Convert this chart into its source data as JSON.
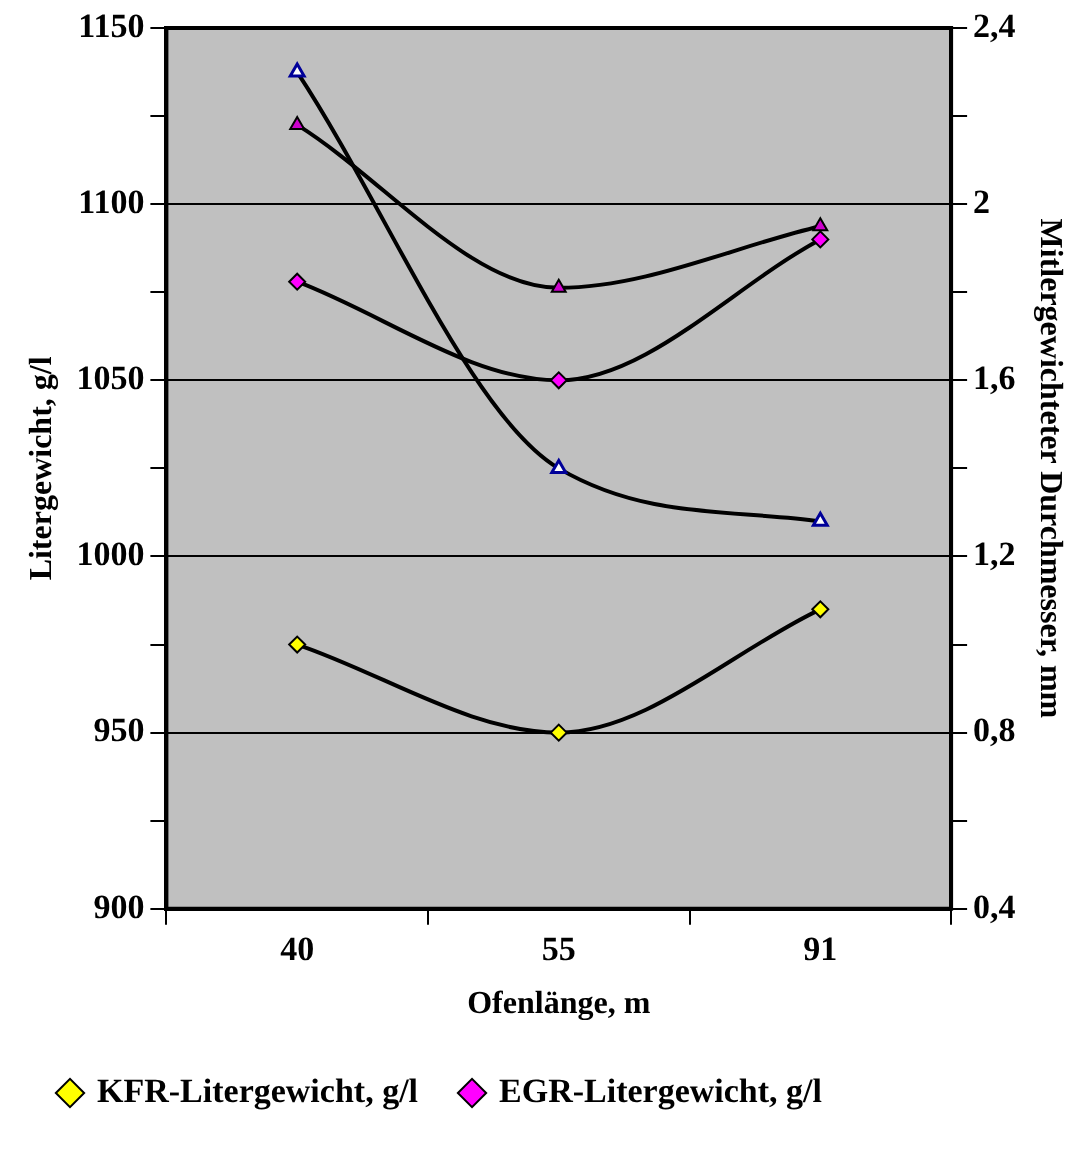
{
  "chart_data": {
    "type": "line",
    "xlabel": "Ofenlänge, m",
    "ylabel": "Litergewicht, g/l",
    "y2label": "Mitlergewichteter Durchmesser, mm",
    "categories": [
      "40",
      "55",
      "91"
    ],
    "series": [
      {
        "name": "KFR-Litergewicht, g/l",
        "color": "#ffff00",
        "marker": "diamond",
        "values": [
          975,
          950,
          985
        ]
      },
      {
        "name": "EGR-Litergewicht, g/l",
        "color": "#ff00ff",
        "marker": "diamond",
        "values": [
          1078,
          1050,
          1090
        ]
      },
      {
        "color": "#000099",
        "marker": "triangle",
        "axis": "y2",
        "values": [
          2.3,
          1.4,
          1.28
        ]
      },
      {
        "color": "#cc00cc",
        "marker": "triangle",
        "axis": "y2",
        "values": [
          2.18,
          1.81,
          1.95
        ]
      }
    ],
    "ylim": [
      900,
      1150
    ],
    "yticks": [
      900,
      {
        "value": 925,
        "label": null
      },
      950,
      {
        "value": 975,
        "label": null
      },
      1000,
      {
        "value": 1025,
        "label": null
      },
      1050,
      {
        "value": 1075,
        "label": null
      },
      1100,
      {
        "value": 1125,
        "label": null
      },
      1150
    ],
    "y2lim": [
      0.4,
      2.4
    ],
    "y2ticks": [
      {
        "value": 0.4,
        "label": "0,4"
      },
      {
        "value": 0.6,
        "label": null
      },
      {
        "value": 0.8,
        "label": "0,8"
      },
      {
        "value": 1.0,
        "label": null
      },
      {
        "value": 1.2,
        "label": "1,2"
      },
      {
        "value": 1.4,
        "label": null
      },
      {
        "value": 1.6,
        "label": "1,6"
      },
      {
        "value": 1.8,
        "label": null
      },
      2,
      {
        "value": 2.2,
        "label": null
      },
      {
        "value": 2.4,
        "label": "2,4"
      }
    ],
    "grid": "y",
    "legend": "bottom",
    "line_style": "solid"
  }
}
